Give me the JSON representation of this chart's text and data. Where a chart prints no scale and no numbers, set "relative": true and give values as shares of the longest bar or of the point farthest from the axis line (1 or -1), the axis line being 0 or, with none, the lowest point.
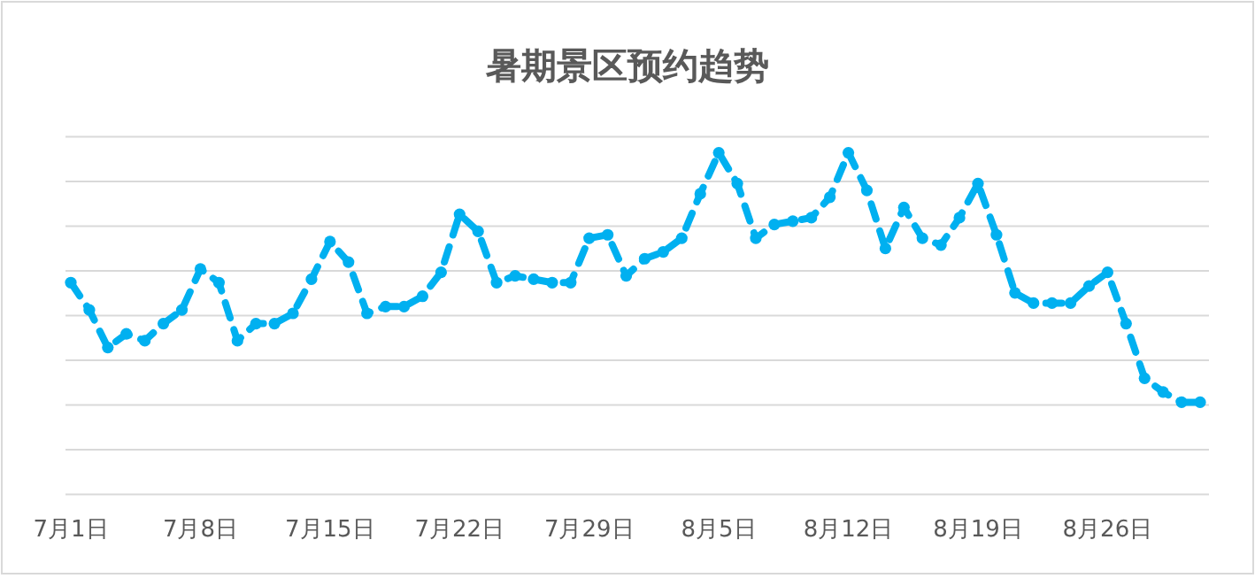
{
  "chart_data": {
    "type": "line",
    "title": "暑期景区预约趋势",
    "relative": true,
    "grid": "y",
    "marker": "circle",
    "line_style": "dashed",
    "categories": [
      "7月1日",
      null,
      null,
      null,
      null,
      null,
      null,
      "7月8日",
      null,
      null,
      null,
      null,
      null,
      null,
      "7月15日",
      null,
      null,
      null,
      null,
      null,
      null,
      "7月22日",
      null,
      null,
      null,
      null,
      null,
      null,
      "7月29日",
      null,
      null,
      null,
      null,
      null,
      null,
      "8月5日",
      null,
      null,
      null,
      null,
      null,
      null,
      "8月12日",
      null,
      null,
      null,
      null,
      null,
      null,
      "8月19日",
      null,
      null,
      null,
      null,
      null,
      null,
      "8月26日",
      null,
      null,
      null,
      null,
      null
    ],
    "series": [
      {
        "color": "#00b0f0",
        "values": [
          0.62,
          0.54,
          0.43,
          0.47,
          0.45,
          0.5,
          0.54,
          0.66,
          0.62,
          0.45,
          0.5,
          0.5,
          0.53,
          0.63,
          0.74,
          0.68,
          0.53,
          0.55,
          0.55,
          0.58,
          0.65,
          0.82,
          0.77,
          0.62,
          0.64,
          0.63,
          0.62,
          0.62,
          0.75,
          0.76,
          0.64,
          0.69,
          0.71,
          0.75,
          0.88,
          1,
          0.91,
          0.75,
          0.79,
          0.8,
          0.81,
          0.87,
          1,
          0.89,
          0.72,
          0.84,
          0.75,
          0.73,
          0.81,
          0.91,
          0.76,
          0.59,
          0.56,
          0.56,
          0.56,
          0.61,
          0.65,
          0.5,
          0.34,
          0.3,
          0.27,
          0.27
        ]
      }
    ]
  }
}
